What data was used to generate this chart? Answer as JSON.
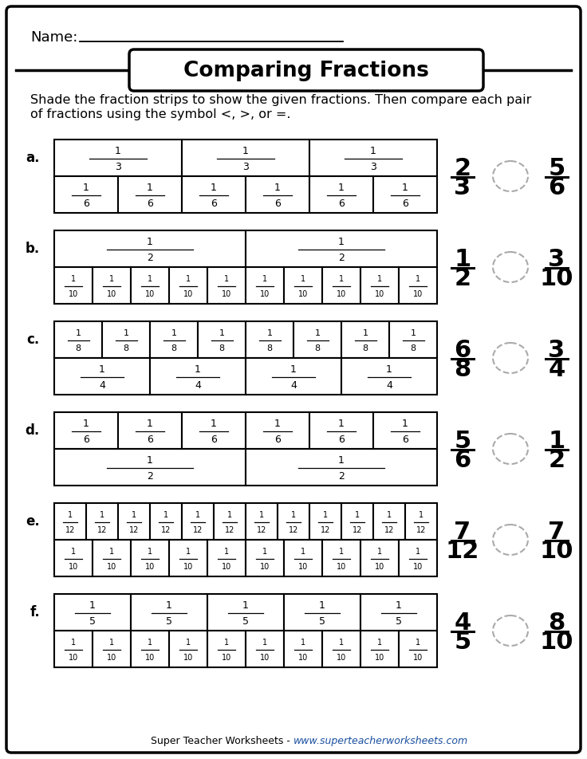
{
  "title": "Comparing Fractions",
  "instruction_line1": "Shade the fraction strips to show the given fractions. Then compare each pair",
  "instruction_line2": "of fractions using the symbol <, >, or =.",
  "name_label": "Name:",
  "footer_normal": "Super Teacher Worksheets - ",
  "footer_url": "www.superteacherworksheets.com",
  "problems": [
    {
      "label": "a.",
      "row1": {
        "parts": 3,
        "label_num": "1",
        "label_den": "3"
      },
      "row2": {
        "parts": 6,
        "label_num": "1",
        "label_den": "6"
      },
      "frac1_num": "2",
      "frac1_den": "3",
      "frac2_num": "5",
      "frac2_den": "6"
    },
    {
      "label": "b.",
      "row1": {
        "parts": 2,
        "label_num": "1",
        "label_den": "2"
      },
      "row2": {
        "parts": 10,
        "label_num": "1",
        "label_den": "10"
      },
      "frac1_num": "1",
      "frac1_den": "2",
      "frac2_num": "3",
      "frac2_den": "10"
    },
    {
      "label": "c.",
      "row1": {
        "parts": 8,
        "label_num": "1",
        "label_den": "8"
      },
      "row2": {
        "parts": 4,
        "label_num": "1",
        "label_den": "4"
      },
      "frac1_num": "6",
      "frac1_den": "8",
      "frac2_num": "3",
      "frac2_den": "4"
    },
    {
      "label": "d.",
      "row1": {
        "parts": 6,
        "label_num": "1",
        "label_den": "6"
      },
      "row2": {
        "parts": 2,
        "label_num": "1",
        "label_den": "2"
      },
      "frac1_num": "5",
      "frac1_den": "6",
      "frac2_num": "1",
      "frac2_den": "2"
    },
    {
      "label": "e.",
      "row1": {
        "parts": 12,
        "label_num": "1",
        "label_den": "12"
      },
      "row2": {
        "parts": 10,
        "label_num": "1",
        "label_den": "10"
      },
      "frac1_num": "7",
      "frac1_den": "12",
      "frac2_num": "7",
      "frac2_den": "10"
    },
    {
      "label": "f.",
      "row1": {
        "parts": 5,
        "label_num": "1",
        "label_den": "5"
      },
      "row2": {
        "parts": 10,
        "label_num": "1",
        "label_den": "10"
      },
      "frac1_num": "4",
      "frac1_den": "5",
      "frac2_num": "8",
      "frac2_den": "10"
    }
  ]
}
